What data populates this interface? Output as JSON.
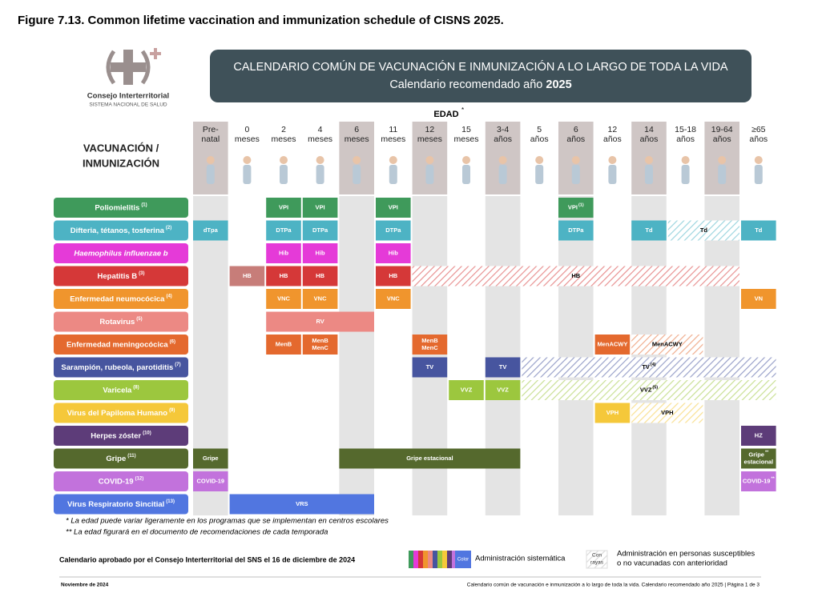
{
  "figure_title": "Figure 7.13. Common lifetime vaccination and immunization schedule of CISNS 2025.",
  "logo": {
    "line1": "Consejo Interterritorial",
    "line2": "SISTEMA NACIONAL DE SALUD"
  },
  "banner": {
    "line1": "CALENDARIO COMÚN DE VACUNACIÓN E INMUNIZACIÓN A LO LARGO DE TODA LA VIDA",
    "line2": "Calendario recomendado año",
    "year": "2025"
  },
  "edad": {
    "label": "EDAD",
    "mark": "*"
  },
  "row_header": [
    "VACUNACIÓN /",
    "INMUNIZACIÓN"
  ],
  "ages": [
    [
      "Pre-",
      "natal"
    ],
    [
      "0",
      "meses"
    ],
    [
      "2",
      "meses"
    ],
    [
      "4",
      "meses"
    ],
    [
      "6",
      "meses"
    ],
    [
      "11",
      "meses"
    ],
    [
      "12",
      "meses"
    ],
    [
      "15",
      "meses"
    ],
    [
      "3-4",
      "años"
    ],
    [
      "5",
      "años"
    ],
    [
      "6",
      "años"
    ],
    [
      "12",
      "años"
    ],
    [
      "14",
      "años"
    ],
    [
      "15-18",
      "años"
    ],
    [
      "19-64",
      "años"
    ],
    [
      "≥65",
      "años"
    ]
  ],
  "shaded_ages": [
    0,
    4,
    6,
    8,
    10,
    12,
    14
  ],
  "rows": [
    {
      "name": "Poliomielitis",
      "note": "(1)",
      "color": "#3f9a5b",
      "cells": [
        {
          "label": [
            "VPI"
          ],
          "span": [
            2,
            2
          ]
        },
        {
          "label": [
            "VPI"
          ],
          "span": [
            3,
            3
          ]
        },
        {
          "label": [
            "VPI"
          ],
          "span": [
            5,
            5
          ]
        },
        {
          "label": [
            "VPI"
          ],
          "note": "(1)",
          "span": [
            10,
            10
          ]
        }
      ]
    },
    {
      "name": "Difteria, tétanos, tosferina",
      "note": "(2)",
      "color": "#4db3c4",
      "cells": [
        {
          "label": [
            "dTpa"
          ],
          "span": [
            0,
            0
          ]
        },
        {
          "label": [
            "DTPa"
          ],
          "span": [
            2,
            2
          ]
        },
        {
          "label": [
            "DTPa"
          ],
          "span": [
            3,
            3
          ]
        },
        {
          "label": [
            "DTPa"
          ],
          "span": [
            5,
            5
          ]
        },
        {
          "label": [
            "DTPa"
          ],
          "span": [
            10,
            10
          ]
        },
        {
          "label": [
            "Td"
          ],
          "span": [
            12,
            12
          ]
        },
        {
          "label": [
            "Td"
          ],
          "span": [
            13,
            14
          ],
          "striped": true
        },
        {
          "label": [
            "Td"
          ],
          "span": [
            15,
            15
          ]
        }
      ]
    },
    {
      "name": "Haemophilus influenzae b",
      "italic": true,
      "color": "#e53ad8",
      "cells": [
        {
          "label": [
            "Hib"
          ],
          "span": [
            2,
            2
          ]
        },
        {
          "label": [
            "Hib"
          ],
          "span": [
            3,
            3
          ]
        },
        {
          "label": [
            "Hib"
          ],
          "span": [
            5,
            5
          ]
        }
      ]
    },
    {
      "name": "Hepatitis B",
      "note": "(3)",
      "color": "#d53838",
      "cells": [
        {
          "label": [
            "HB"
          ],
          "span": [
            1,
            1
          ],
          "color": "#c77d79"
        },
        {
          "label": [
            "HB"
          ],
          "span": [
            2,
            2
          ]
        },
        {
          "label": [
            "HB"
          ],
          "span": [
            3,
            3
          ]
        },
        {
          "label": [
            "HB"
          ],
          "span": [
            5,
            5
          ]
        },
        {
          "label": [
            "HB"
          ],
          "span": [
            6,
            14
          ],
          "striped": true
        }
      ]
    },
    {
      "name": "Enfermedad neumocócica",
      "note": "(4)",
      "color": "#f0952d",
      "cells": [
        {
          "label": [
            "VNC"
          ],
          "span": [
            2,
            2
          ]
        },
        {
          "label": [
            "VNC"
          ],
          "span": [
            3,
            3
          ]
        },
        {
          "label": [
            "VNC"
          ],
          "span": [
            5,
            5
          ]
        },
        {
          "label": [
            "VN"
          ],
          "span": [
            15,
            15
          ]
        }
      ]
    },
    {
      "name": "Rotavirus",
      "note": "(5)",
      "color": "#ec8984",
      "cells": [
        {
          "label": [
            "RV"
          ],
          "span": [
            2,
            4
          ]
        }
      ]
    },
    {
      "name": "Enfermedad meningocócica",
      "note": "(6)",
      "color": "#e4692e",
      "cells": [
        {
          "label": [
            "MenB"
          ],
          "span": [
            2,
            2
          ]
        },
        {
          "label": [
            "MenB",
            "MenC"
          ],
          "span": [
            3,
            3
          ]
        },
        {
          "label": [
            "MenB",
            "MenC"
          ],
          "span": [
            6,
            6
          ]
        },
        {
          "label": [
            "MenACWY"
          ],
          "span": [
            11,
            11
          ]
        },
        {
          "label": [
            "MenACWY"
          ],
          "span": [
            12,
            13
          ],
          "striped": true
        }
      ]
    },
    {
      "name": "Sarampión, rubeola, parotiditis",
      "note": "(7)",
      "color": "#47559f",
      "cells": [
        {
          "label": [
            "TV"
          ],
          "span": [
            6,
            6
          ]
        },
        {
          "label": [
            "TV"
          ],
          "span": [
            8,
            8
          ]
        },
        {
          "label": [
            "TV"
          ],
          "note": "(4)",
          "span": [
            9,
            15
          ],
          "striped": true
        }
      ]
    },
    {
      "name": "Varicela",
      "note": "(8)",
      "color": "#9cc73e",
      "cells": [
        {
          "label": [
            "VVZ"
          ],
          "span": [
            7,
            7
          ]
        },
        {
          "label": [
            "VVZ"
          ],
          "span": [
            8,
            8
          ]
        },
        {
          "label": [
            "VVZ"
          ],
          "note": "(5)",
          "span": [
            9,
            15
          ],
          "striped": true
        }
      ]
    },
    {
      "name": "Virus del Papiloma Humano",
      "note": "(9)",
      "color": "#f5c83a",
      "cells": [
        {
          "label": [
            "VPH"
          ],
          "span": [
            11,
            11
          ]
        },
        {
          "label": [
            "VPH"
          ],
          "span": [
            12,
            13
          ],
          "striped": true
        }
      ]
    },
    {
      "name": "Herpes zóster",
      "note": "(10)",
      "color": "#5d3c79",
      "cells": [
        {
          "label": [
            "HZ"
          ],
          "span": [
            15,
            15
          ]
        }
      ]
    },
    {
      "name": "Gripe",
      "note": "(11)",
      "color": "#55692d",
      "cells": [
        {
          "label": [
            "Gripe"
          ],
          "span": [
            0,
            0
          ]
        },
        {
          "label": [
            "Gripe estacional"
          ],
          "span": [
            4,
            8
          ]
        },
        {
          "label": [
            "Gripe",
            "estacional"
          ],
          "note": "**",
          "span": [
            15,
            15
          ]
        }
      ]
    },
    {
      "name": "COVID-19",
      "note": "(12)",
      "color": "#c272dc",
      "cells": [
        {
          "label": [
            "COVID-19"
          ],
          "span": [
            0,
            0
          ]
        },
        {
          "label": [
            "COVID-19"
          ],
          "note": "**",
          "span": [
            15,
            15
          ]
        }
      ]
    },
    {
      "name": "Virus Respiratorio Sincitial",
      "note": "(13)",
      "color": "#5176e0",
      "cells": [
        {
          "label": [
            "VRS"
          ],
          "span": [
            1,
            4
          ]
        }
      ]
    }
  ],
  "footnotes": [
    "* La edad puede variar ligeramente en los programas que se implementan en centros escolares",
    "** La edad figurará en el documento de recomendaciones de cada temporada"
  ],
  "approval": "Calendario aprobado por el Consejo Interterritorial del SNS el 16 de diciembre de 2024",
  "legend": {
    "color_box": "Color",
    "systematic": "Administración sistemática",
    "striped_box": [
      "Con",
      "rayas"
    ],
    "susceptible": [
      "Administración en personas susceptibles",
      "o no vacunadas con anterioridad"
    ]
  },
  "footer": {
    "left": "Noviembre de 2024",
    "right": "Calendario común de vacunación e inmunización a lo largo de toda la vida. Calendario recomendado año 2025 | Página 1 de 3"
  }
}
